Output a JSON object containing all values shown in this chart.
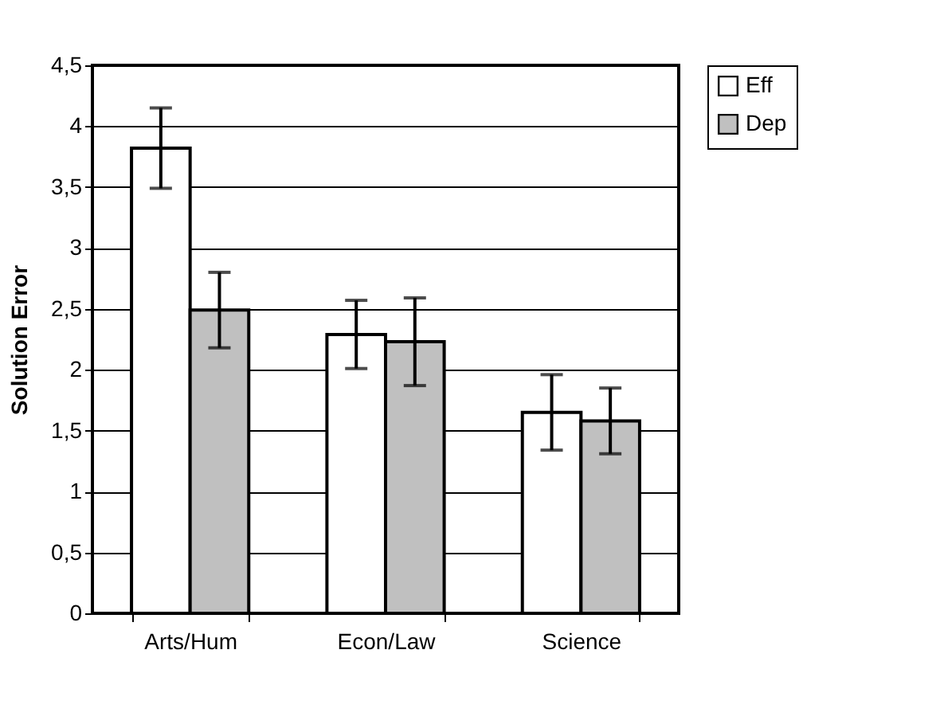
{
  "chart_data": {
    "type": "bar",
    "ylabel": "Solution Error",
    "categories": [
      "Arts/Hum",
      "Econ/Law",
      "Science"
    ],
    "series": [
      {
        "name": "Eff",
        "color": "#ffffff",
        "values": [
          3.82,
          2.29,
          1.65
        ],
        "errors": [
          0.33,
          0.28,
          0.31
        ]
      },
      {
        "name": "Dep",
        "color": "#c0c0c0",
        "values": [
          2.49,
          2.23,
          1.58
        ],
        "errors": [
          0.31,
          0.36,
          0.27
        ]
      }
    ],
    "ylim": [
      0,
      4.5
    ],
    "yticks": [
      0,
      {
        "value": 0.5,
        "label": "0,5"
      },
      1,
      {
        "value": 1.5,
        "label": "1,5"
      },
      2,
      {
        "value": 2.5,
        "label": "2,5"
      },
      3,
      {
        "value": 3.5,
        "label": "3,5"
      },
      4,
      {
        "value": 4.5,
        "label": "4,5"
      }
    ],
    "grid": "y",
    "legend": "right"
  }
}
